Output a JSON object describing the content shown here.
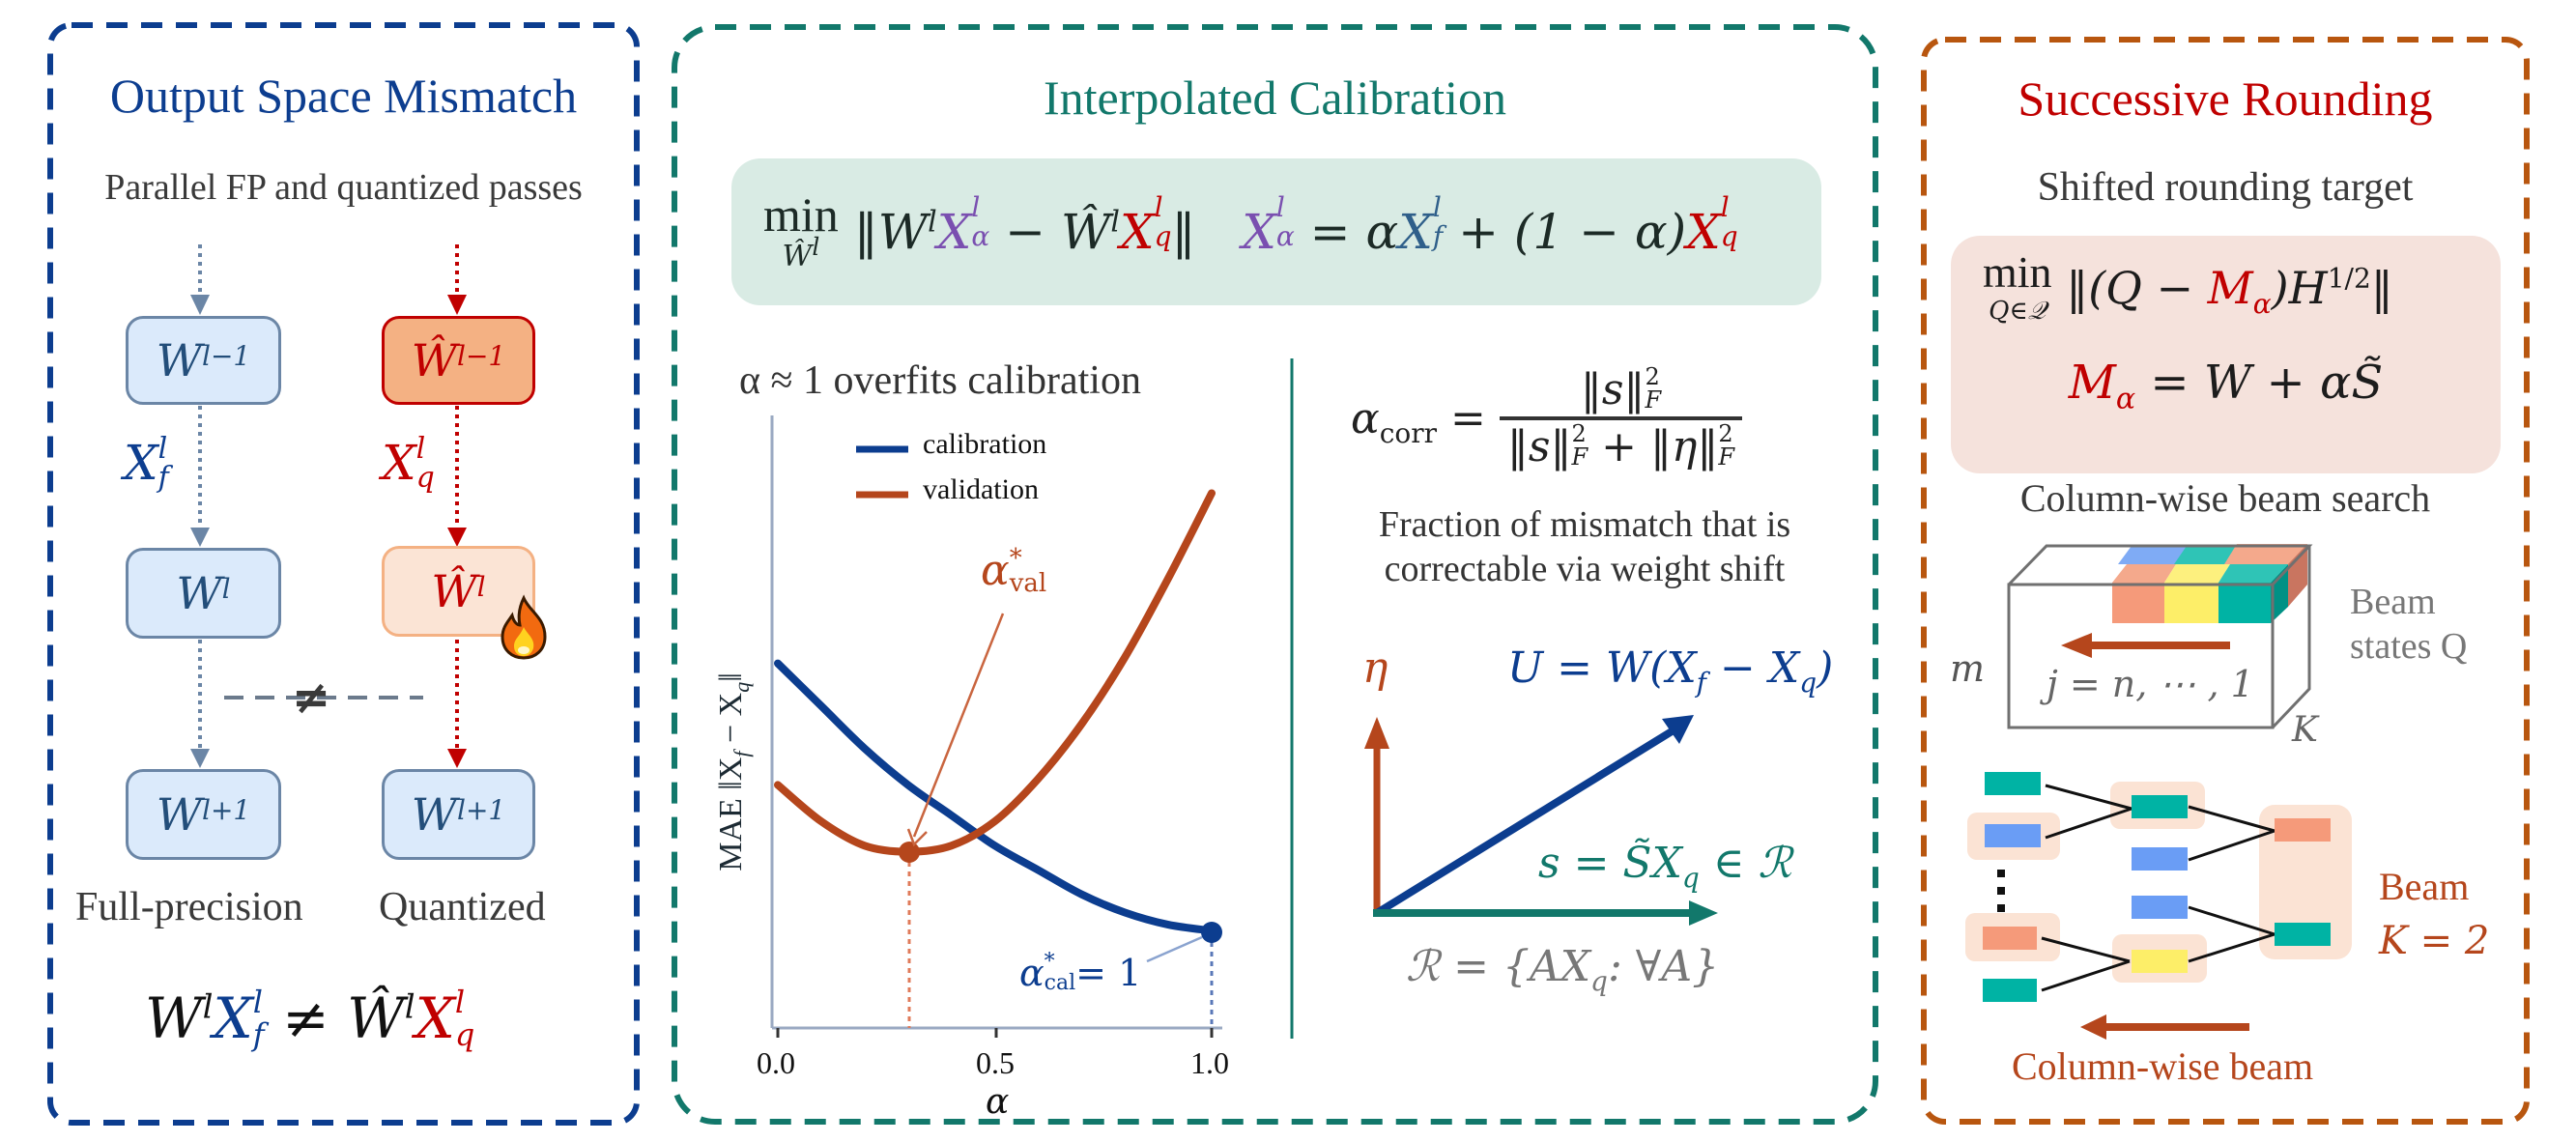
{
  "colors": {
    "panel1_border": "#0c3d8f",
    "panel2_border": "#12786b",
    "panel3_border": "#b8560f",
    "blue": "#0c3d8f",
    "teal": "#12786b",
    "orange": "#b5461c",
    "red": "#c00000",
    "purple": "#7a4fb0",
    "gray": "#6b6b6b"
  },
  "panel1": {
    "title": "Output Space Mismatch",
    "subtitle": "Parallel FP and quantized passes",
    "fp_column": {
      "nodes": [
        {
          "base": "W",
          "sup": "l−1"
        },
        {
          "base": "W",
          "sup": "l"
        },
        {
          "base": "W",
          "sup": "l+1"
        }
      ],
      "edge_label_base": "X",
      "edge_label_sup": "l",
      "edge_label_sub": "f",
      "caption": "Full-precision"
    },
    "q_column": {
      "nodes": [
        {
          "base": "Ŵ",
          "sup": "l−1"
        },
        {
          "base": "Ŵ",
          "sup": "l"
        },
        {
          "base": "W",
          "sup": "l+1"
        }
      ],
      "edge_label_base": "X",
      "edge_label_sup": "l",
      "edge_label_sub": "q",
      "caption": "Quantized",
      "trainable_icon": "fire-emoji"
    },
    "not_equal_symbol": "≠",
    "bottom_equation": {
      "lhs_w": "W",
      "lhs_w_sup": "l",
      "lhs_x": "X",
      "lhs_x_sup": "l",
      "lhs_x_sub": "f",
      "op": "≠",
      "rhs_w": "Ŵ",
      "rhs_w_sup": "l",
      "rhs_x": "X",
      "rhs_x_sup": "l",
      "rhs_x_sub": "q"
    }
  },
  "panel2": {
    "title": "Interpolated Calibration",
    "objective": {
      "min_label": "min",
      "min_sub": "Ŵ",
      "min_sub_sup": "l",
      "norm_left": "‖",
      "w": "W",
      "w_sup": "l",
      "xa": "X",
      "xa_sup": "l",
      "xa_sub": "α",
      "minus": "−",
      "what": "Ŵ",
      "what_sup": "l",
      "xq": "X",
      "xq_sup": "l",
      "xq_sub": "q",
      "norm_right": "‖",
      "def_x": "X",
      "def_x_sup": "l",
      "def_x_sub": "α",
      "def_eq": "= α",
      "def_xf": "X",
      "def_xf_sup": "l",
      "def_xf_sub": "f",
      "def_mid": "+ (1 − α)",
      "def_xq": "X",
      "def_xq_sup": "l",
      "def_xq_sub": "q"
    },
    "chart_title": "α ≈ 1 overfits calibration",
    "alpha_corr": {
      "lhs": "α",
      "lhs_sub": "corr",
      "eq": "=",
      "numerator": "‖s‖",
      "num_sup": "2",
      "num_sub": "F",
      "den_a": "‖s‖",
      "den_plus": "+ ‖η‖",
      "den_sup": "2",
      "den_sub": "F"
    },
    "alpha_corr_desc_line1": "Fraction of mismatch that is",
    "alpha_corr_desc_line2": "correctable via weight shift",
    "vectors": {
      "eta_label": "η",
      "u_label": "U = W(X",
      "u_sub_f": "f",
      "u_mid": " − X",
      "u_sub_q": "q",
      "u_end": ")",
      "s_label": "s = S̃X",
      "s_sub": "q",
      "s_end": " ∈ ℛ",
      "r_label": "ℛ = {AX",
      "r_sub": "q",
      "r_end": ": ∀A}"
    }
  },
  "chart_data": {
    "type": "line",
    "title": "α ≈ 1 overfits calibration",
    "xlabel": "α",
    "ylabel": "MAE ‖X_f − X_q‖",
    "xlim": [
      0.0,
      1.0
    ],
    "ylim": [
      0.0,
      1.0
    ],
    "xticks": [
      "0.0",
      "0.5",
      "1.0"
    ],
    "yticks": [],
    "grid": false,
    "legend_position": "upper center",
    "x": [
      0.0,
      0.1,
      0.2,
      0.3,
      0.4,
      0.5,
      0.6,
      0.7,
      0.8,
      0.9,
      1.0
    ],
    "series": [
      {
        "name": "calibration",
        "color": "#0c3d8f",
        "values": [
          0.6,
          0.53,
          0.46,
          0.4,
          0.35,
          0.3,
          0.26,
          0.22,
          0.19,
          0.17,
          0.16
        ]
      },
      {
        "name": "validation",
        "color": "#b5461c",
        "values": [
          0.4,
          0.34,
          0.3,
          0.29,
          0.3,
          0.34,
          0.41,
          0.5,
          0.61,
          0.74,
          0.88
        ]
      }
    ],
    "annotations": [
      {
        "text": "α*_val",
        "x": 0.3,
        "y": 0.29,
        "color": "#b5461c"
      },
      {
        "text": "α*_cal = 1",
        "x": 1.0,
        "y": 0.16,
        "color": "#0c3d8f"
      }
    ],
    "legend": [
      "calibration",
      "validation"
    ],
    "ylabel_render": "MAE ‖X",
    "ylabel_sub": "f",
    "ylabel_mid": " − X",
    "ylabel_sub2": "q",
    "ylabel_end": "‖",
    "ann_val_base": "α",
    "ann_val_sup": "*",
    "ann_val_sub": "val",
    "ann_cal_base": "α",
    "ann_cal_sup": "*",
    "ann_cal_sub": "cal",
    "ann_cal_end": "= 1"
  },
  "panel3": {
    "title": "Successive Rounding",
    "subtitle": "Shifted rounding target",
    "objective": {
      "min_label": "min",
      "min_sub": "Q∈𝒬",
      "body_a": "‖(Q − ",
      "m": "M",
      "m_sub": "α",
      "body_b": ")H",
      "h_sup": "1/2",
      "body_c": "‖",
      "def_m": "M",
      "def_m_sub": "α",
      "def_rest": " = W + αS̃"
    },
    "beam_title": "Column-wise beam search",
    "tensor": {
      "m_label": "m",
      "j_label": "j = n, ⋯ , 1",
      "k_label": "K",
      "beam_states_line1": "Beam",
      "beam_states_line2": "states Q"
    },
    "beam_label_line1": "Beam",
    "beam_label_line2": "K = 2",
    "beam_caption": "Column-wise beam"
  }
}
